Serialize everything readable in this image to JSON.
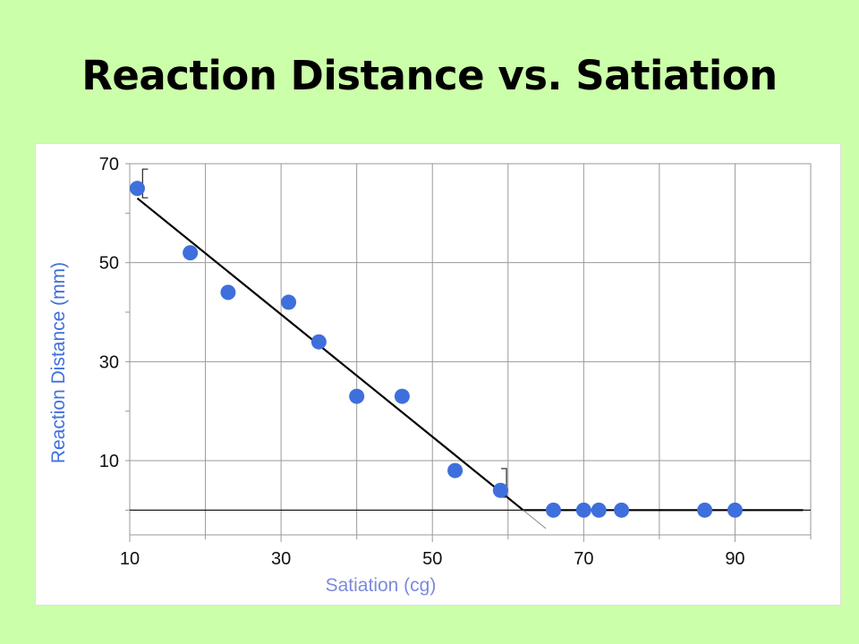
{
  "slide": {
    "title": "Reaction Distance vs. Satiation"
  },
  "colors": {
    "background": "#ccffaa",
    "points": "#3f6fdc",
    "axis_title": "#7b8bdc",
    "grid": "#9a9a9a",
    "fit_line": "#000000"
  },
  "chart_data": {
    "type": "scatter",
    "title": "",
    "xlabel": "Satiation (cg)",
    "ylabel": "Reaction Distance (mm)",
    "xlim": [
      10,
      100
    ],
    "ylim": [
      -5,
      70
    ],
    "xticks": [
      10,
      30,
      50,
      70,
      90
    ],
    "yticks": [
      10,
      30,
      50,
      70
    ],
    "grid": true,
    "series": [
      {
        "x": [
          11,
          18,
          23,
          31,
          35,
          40,
          46,
          53,
          59,
          66,
          70,
          72,
          75,
          86,
          90
        ],
        "y": [
          65,
          52,
          44,
          42,
          34,
          23,
          23,
          8,
          4,
          0,
          0,
          0,
          0,
          0,
          0
        ]
      }
    ],
    "fit_line": {
      "x": [
        11,
        62,
        99
      ],
      "y": [
        63,
        0,
        0
      ]
    },
    "reference_line_y": 0
  }
}
